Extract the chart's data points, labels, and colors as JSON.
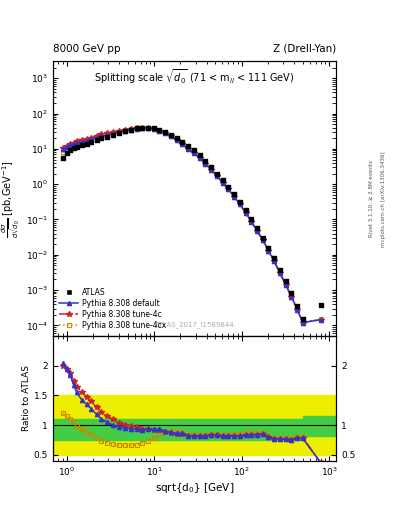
{
  "title_top_left": "8000 GeV pp",
  "title_top_right": "Z (Drell-Yan)",
  "plot_title": "Splitting scale $\\sqrt{d_0}$ (71 < m$_{ll}$ < 111 GeV)",
  "watermark": "ATLAS_2017_I1589844",
  "right_label1": "Rivet 3.1.10; ≥ 2.8M events",
  "right_label2": "mcplots.cern.ch [arXiv:1306.3436]",
  "atlas_x": [
    0.91,
    1.0,
    1.1,
    1.2,
    1.3,
    1.5,
    1.7,
    1.9,
    2.2,
    2.5,
    2.9,
    3.4,
    4.0,
    4.6,
    5.4,
    6.3,
    7.3,
    8.5,
    9.9,
    11.5,
    13.4,
    15.6,
    18.1,
    21.1,
    24.5,
    28.5,
    33.2,
    38.6,
    44.9,
    52.2,
    60.7,
    70.6,
    82.1,
    95.5,
    111.0,
    129.1,
    150.1,
    174.5,
    202.9,
    235.9,
    274.3,
    319.0,
    371.0,
    431.4,
    500.0,
    800.0
  ],
  "atlas_y": [
    5.5,
    7.5,
    9.0,
    10.5,
    11.5,
    12.5,
    14.0,
    15.5,
    17.5,
    20.0,
    22.0,
    25.0,
    29.0,
    32.0,
    35.0,
    38.0,
    40.0,
    40.0,
    38.0,
    34.0,
    30.0,
    25.0,
    20.0,
    15.5,
    12.0,
    9.0,
    6.5,
    4.5,
    3.0,
    2.0,
    1.3,
    0.85,
    0.52,
    0.32,
    0.18,
    0.1,
    0.056,
    0.03,
    0.016,
    0.0082,
    0.0038,
    0.0018,
    0.00085,
    0.00035,
    0.00015,
    0.00038
  ],
  "py_default_x": [
    0.91,
    1.0,
    1.1,
    1.2,
    1.3,
    1.5,
    1.7,
    1.9,
    2.2,
    2.5,
    2.9,
    3.4,
    4.0,
    4.6,
    5.4,
    6.3,
    7.3,
    8.5,
    9.9,
    11.5,
    13.4,
    15.6,
    18.1,
    21.1,
    24.5,
    28.5,
    33.2,
    38.6,
    44.9,
    52.2,
    60.7,
    70.6,
    82.1,
    95.5,
    111.0,
    129.1,
    150.1,
    174.5,
    202.9,
    235.9,
    274.3,
    319.0,
    371.0,
    431.4,
    500.0,
    800.0
  ],
  "py_default_y": [
    10.0,
    11.5,
    12.5,
    13.5,
    14.5,
    15.5,
    17.0,
    18.5,
    20.5,
    22.5,
    24.5,
    27.0,
    30.0,
    32.5,
    34.5,
    36.5,
    38.0,
    38.0,
    36.0,
    32.0,
    27.5,
    22.5,
    17.5,
    13.5,
    10.0,
    7.5,
    5.5,
    3.8,
    2.6,
    1.7,
    1.1,
    0.72,
    0.44,
    0.27,
    0.155,
    0.087,
    0.048,
    0.026,
    0.013,
    0.0065,
    0.003,
    0.0014,
    0.00065,
    0.00028,
    0.00012,
    0.000145
  ],
  "py_4c_x": [
    0.91,
    1.0,
    1.1,
    1.2,
    1.3,
    1.5,
    1.7,
    1.9,
    2.2,
    2.5,
    2.9,
    3.4,
    4.0,
    4.6,
    5.4,
    6.3,
    7.3,
    8.5,
    9.9,
    11.5,
    13.4,
    15.6,
    18.1,
    21.1,
    24.5,
    28.5,
    33.2,
    38.6,
    44.9,
    52.2,
    60.7,
    70.6,
    82.1,
    95.5,
    111.0,
    129.1,
    150.1,
    174.5,
    202.9,
    235.9,
    274.3,
    319.0,
    371.0,
    431.4,
    500.0,
    800.0
  ],
  "py_4c_y": [
    10.5,
    12.0,
    13.5,
    15.0,
    16.5,
    18.0,
    19.5,
    21.0,
    23.5,
    26.0,
    28.0,
    30.5,
    33.0,
    35.0,
    36.5,
    38.0,
    39.0,
    38.5,
    36.0,
    32.0,
    27.5,
    22.5,
    17.5,
    13.5,
    10.0,
    7.5,
    5.5,
    3.8,
    2.6,
    1.7,
    1.1,
    0.72,
    0.44,
    0.27,
    0.155,
    0.087,
    0.048,
    0.026,
    0.013,
    0.0065,
    0.003,
    0.0014,
    0.00065,
    0.00028,
    0.00012,
    0.000145
  ],
  "py_4cx_x": [
    0.91,
    1.0,
    1.1,
    1.2,
    1.3,
    1.5,
    1.7,
    1.9,
    2.2,
    2.5,
    2.9,
    3.4,
    4.0,
    4.6,
    5.4,
    6.3,
    7.3,
    8.5,
    9.9,
    11.5,
    13.4,
    15.6,
    18.1,
    21.1,
    24.5,
    28.5,
    33.2,
    38.6,
    44.9,
    52.2,
    60.7,
    70.6,
    82.1,
    95.5,
    111.0,
    129.1,
    150.1,
    174.5,
    202.9,
    235.9,
    274.3,
    319.0,
    371.0,
    431.4,
    500.0,
    800.0
  ],
  "py_4cx_y": [
    8.0,
    9.5,
    11.0,
    12.5,
    13.5,
    15.0,
    16.5,
    18.0,
    20.5,
    23.0,
    25.5,
    28.0,
    31.0,
    33.5,
    35.5,
    37.5,
    38.5,
    38.5,
    36.5,
    32.5,
    28.0,
    23.0,
    18.0,
    14.0,
    10.5,
    8.0,
    5.8,
    4.0,
    2.7,
    1.8,
    1.15,
    0.75,
    0.46,
    0.28,
    0.16,
    0.09,
    0.05,
    0.027,
    0.014,
    0.007,
    0.0032,
    0.0015,
    0.0007,
    0.0003,
    0.000125,
    0.000148
  ],
  "ratio_default": [
    2.05,
    1.95,
    1.85,
    1.68,
    1.55,
    1.42,
    1.35,
    1.28,
    1.18,
    1.1,
    1.05,
    1.0,
    0.97,
    0.96,
    0.94,
    0.93,
    0.92,
    0.93,
    0.93,
    0.93,
    0.9,
    0.88,
    0.86,
    0.86,
    0.82,
    0.81,
    0.82,
    0.82,
    0.83,
    0.83,
    0.82,
    0.82,
    0.82,
    0.82,
    0.83,
    0.84,
    0.84,
    0.85,
    0.8,
    0.77,
    0.77,
    0.76,
    0.75,
    0.78,
    0.78,
    0.37
  ],
  "ratio_4c": [
    2.0,
    1.95,
    1.88,
    1.75,
    1.65,
    1.55,
    1.48,
    1.4,
    1.3,
    1.22,
    1.15,
    1.1,
    1.04,
    1.01,
    0.99,
    0.97,
    0.94,
    0.93,
    0.91,
    0.91,
    0.88,
    0.87,
    0.85,
    0.85,
    0.82,
    0.81,
    0.82,
    0.82,
    0.83,
    0.83,
    0.82,
    0.82,
    0.82,
    0.82,
    0.83,
    0.84,
    0.84,
    0.85,
    0.8,
    0.77,
    0.77,
    0.76,
    0.75,
    0.78,
    0.78,
    0.37
  ],
  "ratio_4cx": [
    1.2,
    1.15,
    1.1,
    1.05,
    0.98,
    0.93,
    0.88,
    0.85,
    0.78,
    0.73,
    0.7,
    0.68,
    0.66,
    0.66,
    0.66,
    0.67,
    0.7,
    0.73,
    0.79,
    0.85,
    0.88,
    0.9,
    0.88,
    0.88,
    0.84,
    0.83,
    0.84,
    0.84,
    0.85,
    0.85,
    0.84,
    0.84,
    0.85,
    0.85,
    0.86,
    0.87,
    0.87,
    0.87,
    0.82,
    0.79,
    0.79,
    0.78,
    0.77,
    0.8,
    0.8,
    0.38
  ],
  "color_default": "#3333cc",
  "color_4c": "#cc2222",
  "color_4cx": "#cc8800",
  "color_atlas": "#111111",
  "band_yellow": "#eeee00",
  "band_green": "#44cc44",
  "xlim": [
    0.7,
    1200
  ],
  "ylim_main": [
    5e-05,
    3000
  ],
  "ylim_ratio": [
    0.4,
    2.5
  ],
  "main_band_xlo": 0.7,
  "main_band_xhi": 500.0,
  "last_band_xlo": 500.0,
  "last_band_xhi": 1200.0,
  "main_yellow_lo": 0.5,
  "main_yellow_hi": 1.5,
  "main_green_lo": 0.75,
  "main_green_hi": 1.1,
  "last_yellow_lo": 0.5,
  "last_yellow_hi": 1.5,
  "last_green_lo": 0.82,
  "last_green_hi": 1.15
}
